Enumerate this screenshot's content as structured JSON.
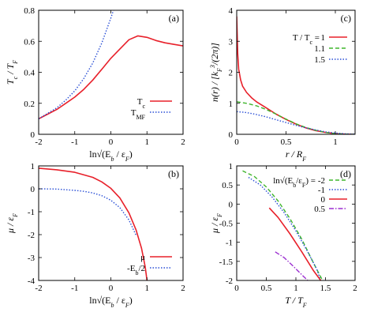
{
  "colors": {
    "red": "#e8202a",
    "blue": "#2a4fd6",
    "green": "#3fb52b",
    "purple": "#9b2fd0",
    "axis": "#000000"
  },
  "chart_data": [
    {
      "panel_label": "(a)",
      "type": "line",
      "ylabel": "T_c / T_F",
      "xlabel": "ln√(E_b / ε_F)",
      "xlim": [
        -2,
        2
      ],
      "ylim": [
        0,
        0.8
      ],
      "xticks": [
        -2,
        -1,
        0,
        1,
        2
      ],
      "yticks": [
        0,
        0.2,
        0.4,
        0.6,
        0.8
      ],
      "tick_labels_x": [
        "-2",
        "-1",
        "0",
        "1",
        "2"
      ],
      "tick_labels_y": [
        "0",
        "0.2",
        "0.4",
        "0.6",
        "0.8"
      ],
      "legend_position": "bottom-right",
      "series": [
        {
          "name": "T_c",
          "color": "red",
          "dash": "solid",
          "x": [
            -2,
            -1.75,
            -1.5,
            -1.25,
            -1.0,
            -0.75,
            -0.5,
            -0.25,
            0.0,
            0.25,
            0.5,
            0.75,
            1.0,
            1.25,
            1.5,
            1.75,
            2.0
          ],
          "y": [
            0.1,
            0.13,
            0.16,
            0.2,
            0.24,
            0.29,
            0.35,
            0.42,
            0.49,
            0.55,
            0.61,
            0.635,
            0.625,
            0.605,
            0.59,
            0.58,
            0.57
          ]
        },
        {
          "name": "T_MF",
          "color": "blue",
          "dash": "dotted",
          "x": [
            -2,
            -1.75,
            -1.5,
            -1.25,
            -1.0,
            -0.75,
            -0.5,
            -0.25,
            0.0,
            0.1
          ],
          "y": [
            0.1,
            0.135,
            0.17,
            0.22,
            0.28,
            0.36,
            0.46,
            0.59,
            0.75,
            0.82
          ]
        }
      ]
    },
    {
      "panel_label": "(c)",
      "type": "line",
      "ylabel": "n(r) / [k_F^3/(2π)]",
      "xlabel": "r / R_F",
      "xlim": [
        0,
        1.2
      ],
      "ylim": [
        0,
        4
      ],
      "xticks": [
        0,
        0.5,
        1
      ],
      "yticks": [
        0,
        1,
        2,
        3,
        4
      ],
      "tick_labels_x": [
        "0",
        "0.5",
        "1"
      ],
      "tick_labels_y": [
        "0",
        "1",
        "2",
        "3",
        "4"
      ],
      "legend_position": "top-right",
      "legend_title": "T / T_c =",
      "series": [
        {
          "name": "1",
          "color": "red",
          "dash": "solid",
          "x": [
            0.0,
            0.01,
            0.02,
            0.04,
            0.06,
            0.1,
            0.15,
            0.2,
            0.3,
            0.4,
            0.5,
            0.6,
            0.7,
            0.8,
            0.9,
            1.0,
            1.1,
            1.2
          ],
          "y": [
            3.8,
            2.6,
            2.1,
            1.75,
            1.55,
            1.35,
            1.18,
            1.05,
            0.85,
            0.65,
            0.48,
            0.33,
            0.21,
            0.12,
            0.06,
            0.02,
            0.005,
            0.0
          ]
        },
        {
          "name": "1.1",
          "color": "green",
          "dash": "dashed",
          "x": [
            0.0,
            0.1,
            0.2,
            0.3,
            0.4,
            0.5,
            0.6,
            0.7,
            0.8,
            0.9,
            1.0,
            1.1,
            1.2
          ],
          "y": [
            1.05,
            1.0,
            0.92,
            0.8,
            0.65,
            0.49,
            0.34,
            0.22,
            0.13,
            0.06,
            0.02,
            0.005,
            0.0
          ]
        },
        {
          "name": "1.5",
          "color": "blue",
          "dash": "dotted",
          "x": [
            0.0,
            0.1,
            0.2,
            0.3,
            0.4,
            0.5,
            0.6,
            0.7,
            0.8,
            0.9,
            1.0,
            1.1,
            1.2
          ],
          "y": [
            0.73,
            0.7,
            0.64,
            0.56,
            0.47,
            0.38,
            0.29,
            0.21,
            0.14,
            0.08,
            0.04,
            0.015,
            0.005
          ]
        }
      ]
    },
    {
      "panel_label": "(b)",
      "type": "line",
      "ylabel": "μ / ε_F",
      "xlabel": "ln√(E_b / ε_F)",
      "xlim": [
        -2,
        2
      ],
      "ylim": [
        -4,
        1
      ],
      "xticks": [
        -2,
        -1,
        0,
        1,
        2
      ],
      "yticks": [
        -4,
        -3,
        -2,
        -1,
        0,
        1
      ],
      "tick_labels_x": [
        "-2",
        "-1",
        "0",
        "1",
        "2"
      ],
      "tick_labels_y": [
        "-4",
        "-3",
        "-2",
        "-1",
        "0",
        "1"
      ],
      "legend_position": "bottom-right",
      "series": [
        {
          "name": "μ",
          "color": "red",
          "dash": "solid",
          "x": [
            -2,
            -1.5,
            -1.0,
            -0.5,
            -0.25,
            0.0,
            0.25,
            0.5,
            0.7,
            0.85,
            0.95,
            1.0
          ],
          "y": [
            0.9,
            0.83,
            0.72,
            0.5,
            0.3,
            0.02,
            -0.4,
            -1.05,
            -1.8,
            -2.6,
            -3.4,
            -4.0
          ]
        },
        {
          "name": "-E_b/2",
          "color": "blue",
          "dash": "dotted",
          "x": [
            -2,
            -1.5,
            -1.0,
            -0.75,
            -0.5,
            -0.25,
            0.0,
            0.25,
            0.5,
            0.7
          ],
          "y": [
            0.0,
            -0.01,
            -0.07,
            -0.11,
            -0.18,
            -0.3,
            -0.5,
            -0.82,
            -1.36,
            -2.03
          ]
        }
      ]
    },
    {
      "panel_label": "(d)",
      "type": "line",
      "ylabel": "μ / ε_F",
      "xlabel": "T / T_F",
      "xlim": [
        0,
        2
      ],
      "ylim": [
        -2,
        1
      ],
      "xticks": [
        0,
        0.5,
        1,
        1.5,
        2
      ],
      "yticks": [
        -2,
        -1.5,
        -1,
        -0.5,
        0,
        0.5,
        1
      ],
      "tick_labels_x": [
        "0",
        "0.5",
        "1",
        "1.5",
        "2"
      ],
      "tick_labels_y": [
        "-2",
        "-1.5",
        "-1",
        "-0.5",
        "0",
        "0.5",
        "1"
      ],
      "legend_position": "top-right",
      "legend_title": "ln√(E_b/ε_F) =",
      "series": [
        {
          "name": "-2",
          "color": "green",
          "dash": "dashed",
          "x": [
            0.1,
            0.3,
            0.5,
            0.7,
            0.9,
            1.1,
            1.3,
            1.45
          ],
          "y": [
            0.87,
            0.72,
            0.45,
            0.08,
            -0.38,
            -0.92,
            -1.55,
            -2.0
          ]
        },
        {
          "name": "-1",
          "color": "blue",
          "dash": "dotted",
          "x": [
            0.2,
            0.4,
            0.6,
            0.8,
            1.0,
            1.2,
            1.35,
            1.42
          ],
          "y": [
            0.7,
            0.5,
            0.18,
            -0.22,
            -0.7,
            -1.25,
            -1.7,
            -2.0
          ]
        },
        {
          "name": "0",
          "color": "red",
          "dash": "solid",
          "x": [
            0.55,
            0.7,
            0.9,
            1.1,
            1.3,
            1.42
          ],
          "y": [
            -0.1,
            -0.35,
            -0.78,
            -1.25,
            -1.75,
            -2.0
          ]
        },
        {
          "name": "0.5",
          "color": "purple",
          "dash": "dashdot",
          "x": [
            0.65,
            0.8,
            0.95,
            1.1,
            1.2
          ],
          "y": [
            -1.25,
            -1.4,
            -1.62,
            -1.85,
            -2.0
          ]
        }
      ]
    }
  ]
}
